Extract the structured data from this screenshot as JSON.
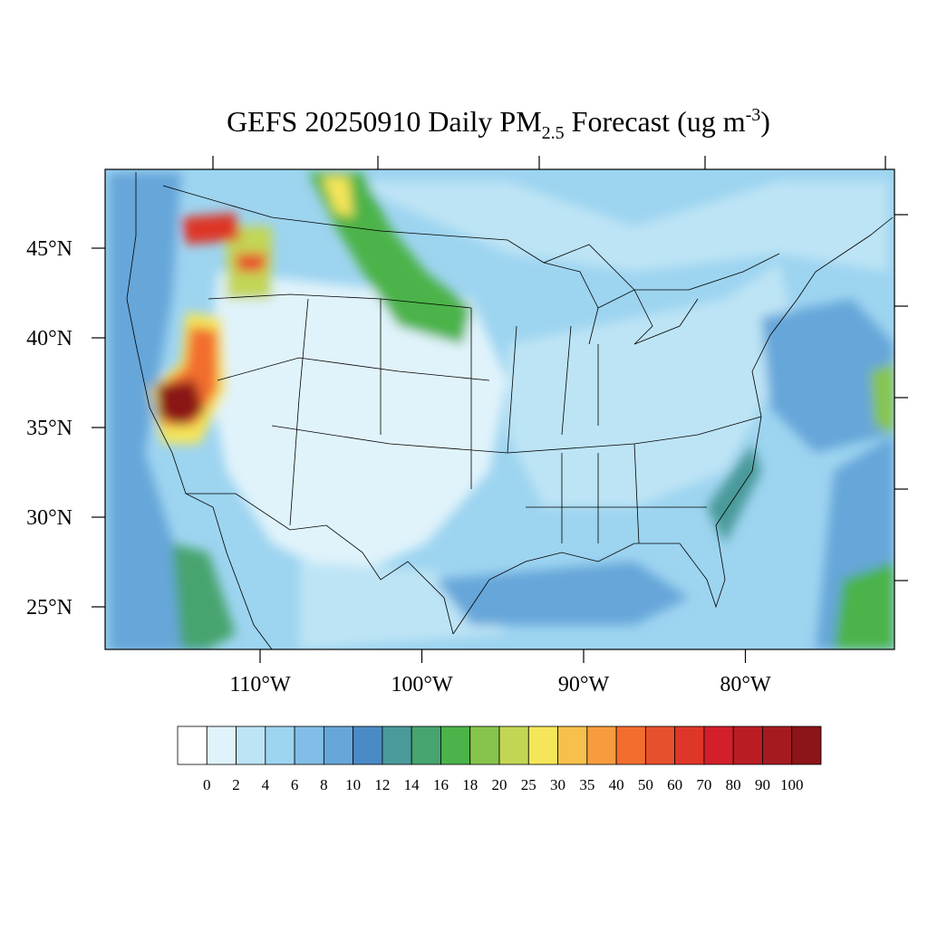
{
  "title": {
    "main": "GEFS 20250910 Daily PM",
    "subscript": "2.5",
    "middle": " Forecast (ug m",
    "superscript": "-3",
    "end": ")"
  },
  "lat_ticks": [
    {
      "value": 45,
      "label": "45°N"
    },
    {
      "value": 40,
      "label": "40°N"
    },
    {
      "value": 35,
      "label": "35°N"
    },
    {
      "value": 30,
      "label": "30°N"
    },
    {
      "value": 25,
      "label": "25°N"
    }
  ],
  "lon_ticks": [
    {
      "value": -110,
      "label": "110°W"
    },
    {
      "value": -100,
      "label": "100°W"
    },
    {
      "value": -90,
      "label": "90°W"
    },
    {
      "value": -80,
      "label": "80°W"
    }
  ],
  "colorbar": {
    "levels": [
      0,
      2,
      4,
      6,
      8,
      10,
      12,
      14,
      16,
      18,
      20,
      25,
      30,
      35,
      40,
      50,
      60,
      70,
      80,
      90,
      100
    ],
    "colors": [
      "#ffffff",
      "#e0f3fb",
      "#bde4f5",
      "#9dd4f0",
      "#81bde6",
      "#66a6d9",
      "#4a8ac7",
      "#4a9a9a",
      "#46a46e",
      "#4bb34a",
      "#86c44c",
      "#c3d654",
      "#f4e55a",
      "#f7c04a",
      "#f79c3e",
      "#f26d2f",
      "#e8502d",
      "#de3628",
      "#d21f2b",
      "#ba1c24",
      "#a51a21",
      "#8b1519"
    ]
  }
}
